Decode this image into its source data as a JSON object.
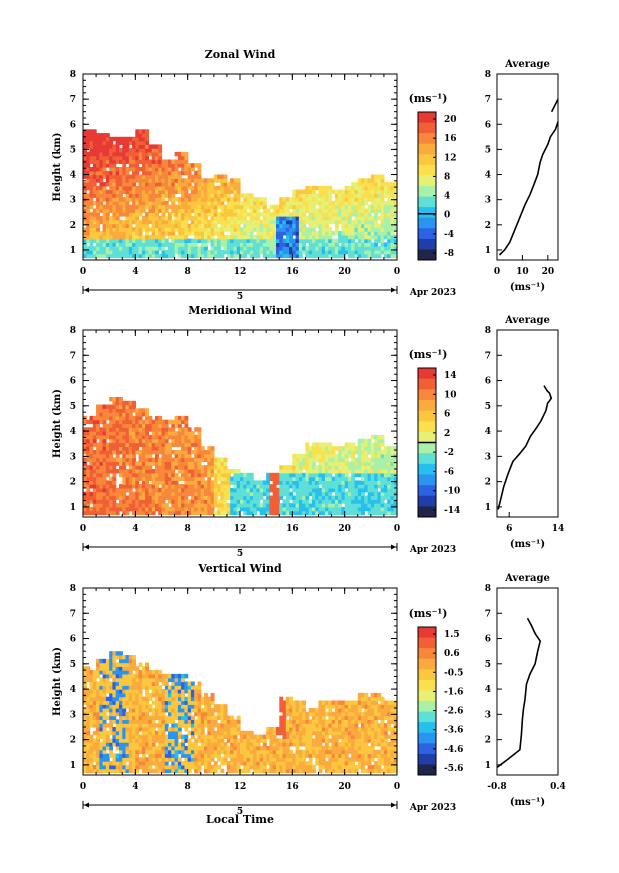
{
  "x_label": "Local Time",
  "date_label": "Apr 2023",
  "day_label": "5",
  "height_label": "Height (km)",
  "unit_label": "(ms⁻¹)",
  "avg_title": "Average",
  "x_ticks": [
    "0",
    "4",
    "8",
    "12",
    "16",
    "20",
    "0"
  ],
  "y_ticks": [
    "1",
    "2",
    "3",
    "4",
    "5",
    "6",
    "7",
    "8"
  ],
  "colors": [
    "#20264a",
    "#1f3ea8",
    "#2d63e3",
    "#2a95ef",
    "#27c0ee",
    "#5fe0d6",
    "#a9f0a8",
    "#e5f075",
    "#fbe04e",
    "#fbc73e",
    "#fbaa3e",
    "#f7873a",
    "#f05f36",
    "#e73a34"
  ],
  "chart_data": [
    {
      "type": "heatmap",
      "title": "Zonal Wind",
      "xlabel": "",
      "ylabel": "Height (km)",
      "xlim": [
        0,
        24
      ],
      "ylim": [
        0.6,
        8
      ],
      "colorbar": {
        "unit": "(ms⁻¹)",
        "ticks": [
          "20",
          "16",
          "12",
          "8",
          "4",
          "0",
          "-4",
          "-8"
        ],
        "min": -10,
        "max": 22,
        "zero_line": 0
      },
      "profile_top": [
        5.8,
        5.6,
        5.5,
        5.4,
        5.7,
        5.1,
        4.6,
        4.8,
        4.4,
        3.8,
        3.9,
        3.7,
        3.2,
        3.0,
        2.7,
        3.0,
        3.3,
        3.5,
        3.4,
        3.3,
        3.6,
        3.8,
        3.9,
        3.6
      ],
      "field": "x=hour, y=km; value peaks ~18 below 5 km early morning, decreasing to ~4 near surface after 12 LT; negative pocket near 15 LT",
      "average_profile": {
        "title": "Average",
        "xlabel": "(ms⁻¹)",
        "xlim": [
          0,
          24
        ],
        "x_ticks": [
          "0",
          "10",
          "20"
        ],
        "ylim": [
          0.6,
          8
        ],
        "points": [
          [
            1,
            0.8
          ],
          [
            3,
            1
          ],
          [
            5,
            1.3
          ],
          [
            7,
            1.8
          ],
          [
            9,
            2.3
          ],
          [
            11,
            2.8
          ],
          [
            13,
            3.2
          ],
          [
            14.5,
            3.6
          ],
          [
            16,
            4.0
          ],
          [
            17,
            4.5
          ],
          [
            18,
            4.8
          ],
          [
            19,
            5.0
          ],
          [
            20,
            5.2
          ],
          [
            21,
            5.5
          ],
          [
            23,
            5.8
          ],
          [
            24,
            6.1
          ]
        ],
        "points_upper": [
          [
            21.5,
            6.5
          ],
          [
            23,
            6.8
          ],
          [
            24,
            7.0
          ]
        ]
      }
    },
    {
      "type": "heatmap",
      "title": "Meridional Wind",
      "xlabel": "",
      "ylabel": "Height (km)",
      "xlim": [
        0,
        24
      ],
      "ylim": [
        0.6,
        8
      ],
      "colorbar": {
        "unit": "(ms⁻¹)",
        "ticks": [
          "14",
          "10",
          "6",
          "2",
          "-2",
          "-6",
          "-10",
          "-14"
        ],
        "min": -16,
        "max": 16,
        "zero_line": 0
      },
      "profile_top": [
        4.6,
        5.0,
        5.3,
        5.1,
        4.9,
        4.6,
        4.3,
        4.5,
        4.1,
        3.3,
        2.8,
        2.4,
        2.2,
        2.0,
        2.2,
        2.5,
        3.0,
        3.5,
        3.4,
        3.3,
        3.4,
        3.6,
        3.7,
        3.3
      ],
      "field": "x=hour, y=km; strong southerly ~14 below 4 km early morning, weakening; negative near surface after 12 LT",
      "average_profile": {
        "title": "Average",
        "xlabel": "(ms⁻¹)",
        "xlim": [
          4,
          14
        ],
        "x_ticks": [
          "6",
          "14"
        ],
        "ylim": [
          0.6,
          8
        ],
        "points": [
          [
            4.2,
            0.9
          ],
          [
            4.6,
            1.3
          ],
          [
            5.1,
            1.8
          ],
          [
            5.8,
            2.3
          ],
          [
            6.6,
            2.8
          ],
          [
            7.7,
            3.1
          ],
          [
            8.7,
            3.4
          ],
          [
            9.5,
            3.8
          ],
          [
            10.4,
            4.1
          ],
          [
            11.2,
            4.4
          ],
          [
            12.0,
            4.8
          ],
          [
            12.3,
            5.1
          ],
          [
            12.9,
            5.3
          ],
          [
            12.6,
            5.5
          ],
          [
            12.2,
            5.6
          ],
          [
            11.7,
            5.8
          ]
        ]
      }
    },
    {
      "type": "heatmap",
      "title": "Vertical Wind",
      "xlabel": "Local Time",
      "ylabel": "Height (km)",
      "xlim": [
        0,
        24
      ],
      "ylim": [
        0.6,
        8
      ],
      "colorbar": {
        "unit": "(ms⁻¹)",
        "ticks": [
          "1.5",
          "0.6",
          "-0.5",
          "-1.6",
          "-2.6",
          "-3.6",
          "-4.6",
          "-5.6"
        ],
        "min": -6,
        "max": 2,
        "zero_line": null
      },
      "profile_top": [
        4.8,
        5.1,
        5.5,
        5.3,
        5.0,
        4.7,
        4.5,
        4.6,
        4.2,
        3.7,
        3.3,
        2.8,
        2.3,
        2.1,
        2.4,
        3.6,
        3.4,
        3.2,
        3.5,
        3.4,
        3.5,
        3.7,
        3.8,
        3.5
      ],
      "field": "x=hour, y=km; mostly -0.5 to 0.6 with descending streaks (down to -3.6) around 1-3 LT and 6-8 LT",
      "average_profile": {
        "title": "Average",
        "xlabel": "(ms⁻¹)",
        "xlim": [
          -0.8,
          0.4
        ],
        "x_ticks": [
          "-0.8",
          "0.4"
        ],
        "ylim": [
          0.6,
          8
        ],
        "points": [
          [
            -0.8,
            0.9
          ],
          [
            -0.6,
            1.2
          ],
          [
            -0.35,
            1.6
          ],
          [
            -0.32,
            2.2
          ],
          [
            -0.3,
            2.8
          ],
          [
            -0.28,
            3.2
          ],
          [
            -0.25,
            3.6
          ],
          [
            -0.22,
            4.2
          ],
          [
            -0.15,
            4.6
          ],
          [
            -0.05,
            5.0
          ],
          [
            0.0,
            5.5
          ],
          [
            0.05,
            5.9
          ],
          [
            -0.05,
            6.2
          ],
          [
            -0.12,
            6.5
          ],
          [
            -0.2,
            6.8
          ]
        ]
      }
    }
  ]
}
